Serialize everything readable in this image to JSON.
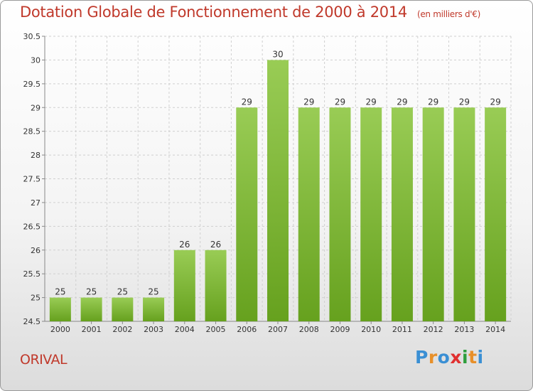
{
  "header": {
    "title": "Dotation Globale de Fonctionnement de 2000 à 2014",
    "unit": "(en milliers d'€)"
  },
  "footer": {
    "city": "ORIVAL",
    "brand": "Proxiti"
  },
  "colors": {
    "bar_top": "#99cc55",
    "bar_bottom": "#66a11e",
    "title": "#c0392b"
  },
  "chart_data": {
    "type": "bar",
    "title": "Dotation Globale de Fonctionnement de 2000 à 2014",
    "categories": [
      "2000",
      "2001",
      "2002",
      "2003",
      "2004",
      "2005",
      "2006",
      "2007",
      "2008",
      "2009",
      "2010",
      "2011",
      "2012",
      "2013",
      "2014"
    ],
    "values": [
      25,
      25,
      25,
      25,
      26,
      26,
      29,
      30,
      29,
      29,
      29,
      29,
      29,
      29,
      29
    ],
    "ylim": [
      24.5,
      30.5
    ],
    "yticks": [
      "24.5",
      "25",
      "25.5",
      "26",
      "26.5",
      "27",
      "27.5",
      "28",
      "28.5",
      "29",
      "29.5",
      "30",
      "30.5"
    ],
    "grid": true
  }
}
